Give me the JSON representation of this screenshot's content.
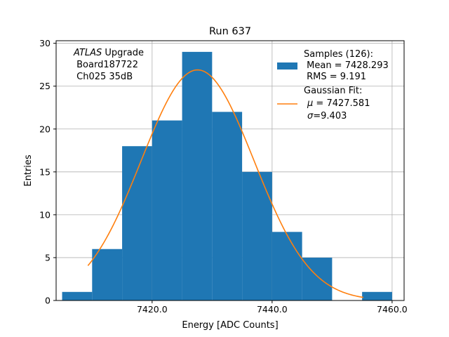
{
  "chart_data": {
    "type": "bar",
    "title": "Run 637",
    "xlabel": "Energy [ADC Counts]",
    "ylabel": "Entries",
    "xlim": [
      7404,
      7462
    ],
    "ylim": [
      0,
      30.3
    ],
    "grid": true,
    "x_ticks": [
      7420,
      7440,
      7460
    ],
    "x_tick_labels": [
      "7420.0",
      "7440.0",
      "7460.0"
    ],
    "y_ticks": [
      0,
      5,
      10,
      15,
      20,
      25,
      30
    ],
    "y_tick_labels": [
      "0",
      "5",
      "10",
      "15",
      "20",
      "25",
      "30"
    ],
    "bins": [
      {
        "start": 7405,
        "end": 7410,
        "count": 1
      },
      {
        "start": 7410,
        "end": 7415,
        "count": 6
      },
      {
        "start": 7415,
        "end": 7420,
        "count": 18
      },
      {
        "start": 7420,
        "end": 7425,
        "count": 21
      },
      {
        "start": 7425,
        "end": 7430,
        "count": 29
      },
      {
        "start": 7430,
        "end": 7435,
        "count": 22
      },
      {
        "start": 7435,
        "end": 7440,
        "count": 15
      },
      {
        "start": 7440,
        "end": 7445,
        "count": 8
      },
      {
        "start": 7445,
        "end": 7450,
        "count": 5
      },
      {
        "start": 7450,
        "end": 7455,
        "count": 0
      },
      {
        "start": 7455,
        "end": 7460,
        "count": 1
      }
    ],
    "fit": {
      "amplitude": 26.9,
      "mean": 7427.581,
      "sigma": 9.403,
      "x_start": 7409.3,
      "x_end": 7455.2
    },
    "series": [
      {
        "name": "Samples (126):",
        "color": "#1f77b4"
      },
      {
        "name": "Gaussian Fit:",
        "color": "#ff7f0e"
      }
    ],
    "legend_position": "top-right",
    "legend": {
      "hist_lines": [
        "Samples (126):",
        " Mean = 7428.293",
        " RMS = 9.191"
      ],
      "fit_line1": "Gaussian Fit:",
      "fit_mu_prefix": "μ",
      "fit_mu_value": " = 7427.581",
      "fit_sigma_prefix": "σ",
      "fit_sigma_value": "=9.403"
    },
    "annotation": {
      "atlas": "ATLAS",
      "upgrade": " Upgrade",
      "board": " Board187722",
      "channel": " Ch025 35dB"
    }
  }
}
